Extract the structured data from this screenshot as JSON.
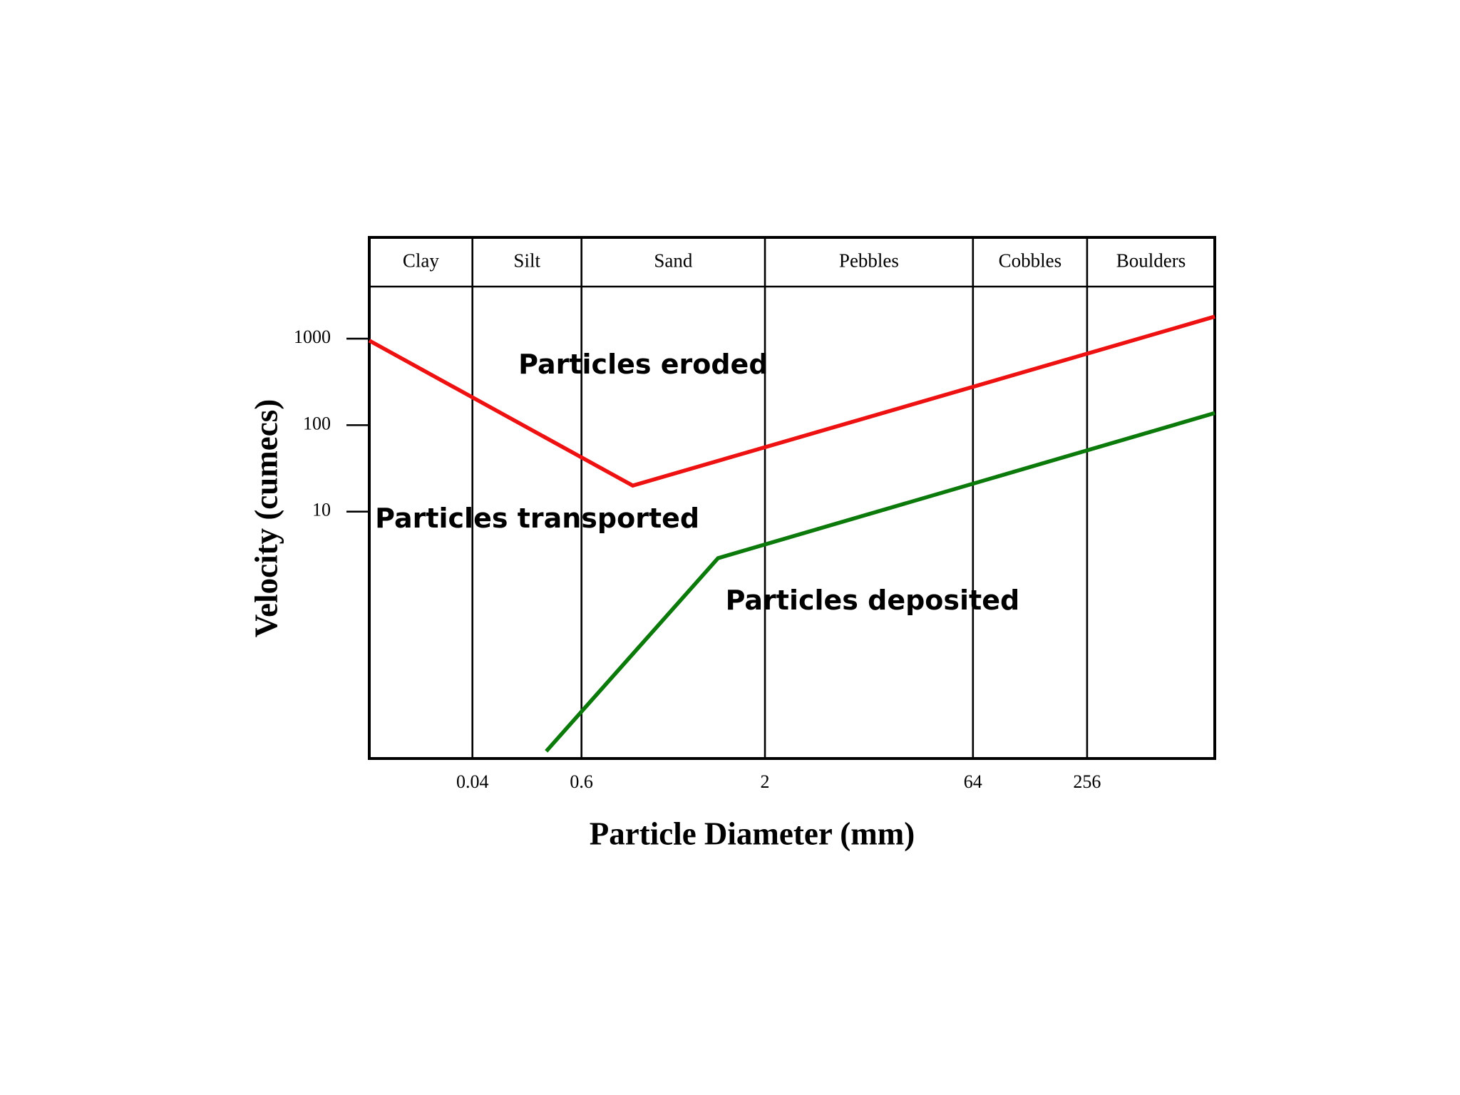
{
  "chart_data": {
    "type": "line",
    "bands": [
      "Clay",
      "Silt",
      "Sand",
      "Pebbles",
      "Cobbles",
      "Boulders"
    ],
    "xlabel": "Particle Diameter (mm)",
    "ylabel": "Velocity (cumecs)",
    "log_x": true,
    "log_y": true,
    "xlim": [
      0.003,
      300
    ],
    "xticks": [
      0.04,
      0.6,
      2,
      64,
      256
    ],
    "ylim": [
      0.014,
      4000
    ],
    "yticks": [
      10,
      100,
      1000
    ],
    "series": [
      {
        "color": "#ee1111",
        "x": [
          0.003,
          0.84,
          300
        ],
        "values": [
          950,
          20,
          1800
        ]
      },
      {
        "color": "#0b7a0b",
        "x": [
          0.25,
          1.47,
          300
        ],
        "values": [
          0.017,
          2.9,
          138
        ]
      }
    ],
    "annotations": [
      {
        "text": "Particles eroded",
        "x": 0.9,
        "y": 480
      },
      {
        "text": "Particles transported",
        "x": 0.2,
        "y": 8
      },
      {
        "text": "Particles deposited",
        "x": 12,
        "y": 0.9
      }
    ]
  }
}
